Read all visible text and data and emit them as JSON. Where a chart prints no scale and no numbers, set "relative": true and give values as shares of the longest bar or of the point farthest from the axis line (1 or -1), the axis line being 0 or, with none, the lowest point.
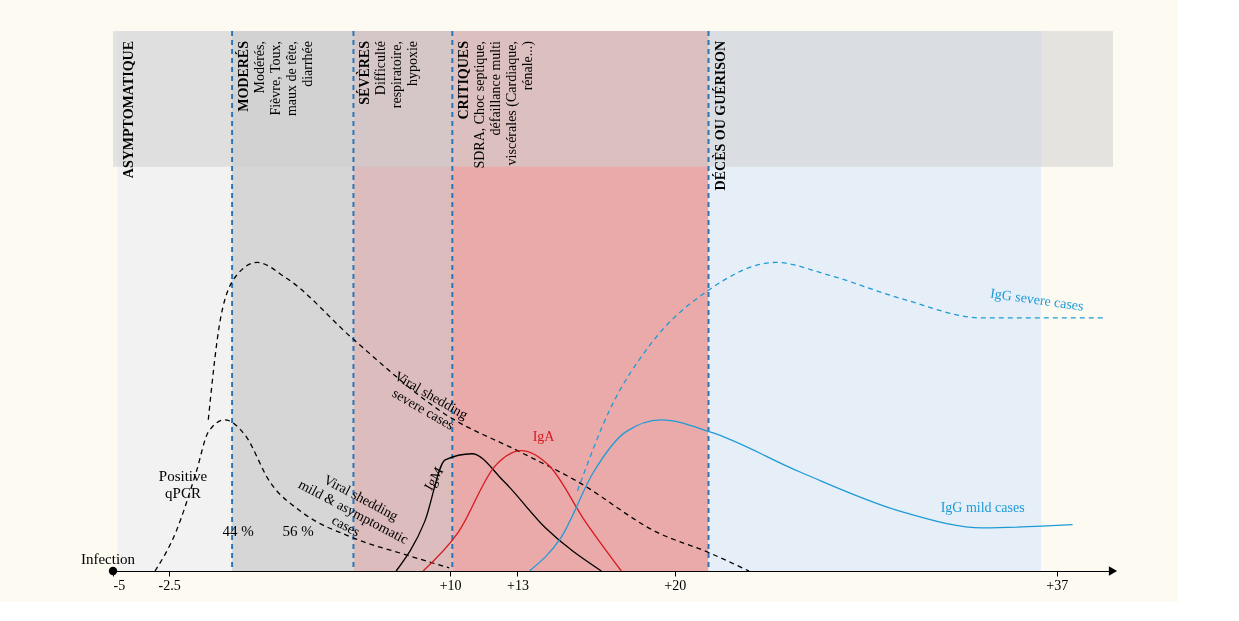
{
  "chart_data": {
    "type": "line",
    "relative": true,
    "grid": false,
    "legend": false,
    "tick_labels": "x",
    "marker": "none",
    "xlim": [
      -5,
      39.5
    ],
    "xticks": [
      {
        "value": -5,
        "label": "-5"
      },
      {
        "value": -2.5,
        "label": "-2.5"
      },
      {
        "value": 10,
        "label": "+10"
      },
      {
        "value": 13,
        "label": "+13"
      },
      {
        "value": 20,
        "label": "+20"
      },
      {
        "value": 37,
        "label": "+37"
      }
    ],
    "series": [
      {
        "name": "Viral shedding\nmild & asymptomatic\ncases",
        "color": "#000000",
        "line_style": "dashed",
        "x": [
          -3.13,
          -2.21,
          -1.3,
          -0.76,
          -0.03,
          0.88,
          1.97,
          3.42,
          5.6,
          8.15,
          9.96
        ],
        "values": [
          0,
          0.125,
          0.32,
          0.45,
          0.49,
          0.44,
          0.29,
          0.19,
          0.11,
          0.05,
          0.01
        ]
      },
      {
        "name": "Viral shedding\nsevere cases",
        "color": "#000000",
        "line_style": "dashed",
        "x": [
          -0.76,
          -0.21,
          0.52,
          1.42,
          2.7,
          5.71,
          9.96,
          13,
          15.67,
          19.22,
          21.5,
          23.3
        ],
        "values": [
          0.49,
          0.82,
          0.96,
          1.0,
          0.95,
          0.75,
          0.5,
          0.39,
          0.29,
          0.125,
          0.06,
          0
        ]
      },
      {
        "name": "IgM",
        "color": "#000000",
        "line_style": "solid",
        "x": [
          7.6,
          8.87,
          9.78,
          10.97,
          12.4,
          14.24,
          16.73
        ],
        "values": [
          0,
          0.16,
          0.36,
          0.38,
          0.29,
          0.14,
          0
        ]
      },
      {
        "name": "IgA",
        "color": "#d7191f",
        "line_style": "solid",
        "x": [
          8.8,
          10.36,
          12.0,
          13.18,
          14.42,
          16.02,
          17.62
        ],
        "values": [
          0,
          0.125,
          0.34,
          0.39,
          0.34,
          0.16,
          0
        ]
      },
      {
        "name": "IgG mild cases",
        "color": "#1e9bd7",
        "line_style": "solid",
        "x": [
          13.53,
          14.95,
          16.38,
          17.8,
          19.4,
          21.6,
          25.6,
          30.2,
          33.7,
          37.7
        ],
        "values": [
          0,
          0.11,
          0.32,
          0.45,
          0.49,
          0.45,
          0.32,
          0.19,
          0.14,
          0.15
        ]
      },
      {
        "name": "IgG severe cases",
        "color": "#1e9bd7",
        "line_style": "dashed",
        "x": [
          15.67,
          17.09,
          18.87,
          21.5,
          24.5,
          26.8,
          30.2,
          33.7,
          36,
          39.1
        ],
        "values": [
          0.26,
          0.52,
          0.73,
          0.91,
          1.0,
          0.96,
          0.88,
          0.82,
          0.82,
          0.82
        ]
      }
    ],
    "bands": [
      {
        "axis": "x",
        "from": -4.8,
        "to": 0.3,
        "label": "ASYMPTOMATIQUE",
        "color": "#f2f2f2"
      },
      {
        "axis": "x",
        "from": 0.3,
        "to": 5.7,
        "label": "MODERÉS\nModérés,\nFièvre, Toux,\nmaux de tête,\ndiarrhée",
        "color": "#d6d6d6"
      },
      {
        "axis": "x",
        "from": 5.7,
        "to": 10.1,
        "label": "SÉVÈRES\nDifficulté\nrespiratoire,\nhypoxie",
        "color": "#dcbcbc"
      },
      {
        "axis": "x",
        "from": 10.1,
        "to": 21.5,
        "label": "CRITIQUES\nSDRA, Choc septique,\ndéfaillance multi\nviscérales (Cardiaque,\nrénale...)",
        "color": "#eaaaaa"
      },
      {
        "axis": "x",
        "from": 21.5,
        "to": 36.3,
        "label": "DÉCÈS OU GUÉRISON",
        "color": "#e6eef7"
      },
      {
        "axis": "y",
        "from": 1.31,
        "to": 1.75,
        "color": "#cfcfcf"
      }
    ],
    "ref_lines": [
      {
        "axis": "x",
        "value": 0.3,
        "color": "#2e75b6",
        "line_style": "dashed"
      },
      {
        "axis": "x",
        "value": 5.7,
        "color": "#2e75b6",
        "line_style": "dashed"
      },
      {
        "axis": "x",
        "value": 10.1,
        "color": "#2e75b6",
        "line_style": "dashed"
      },
      {
        "axis": "x",
        "value": 21.5,
        "color": "#2e75b6",
        "line_style": "dashed"
      }
    ],
    "annotations": [
      "Positive\nqPCR",
      "44 %",
      "56 %",
      "Infection"
    ]
  }
}
